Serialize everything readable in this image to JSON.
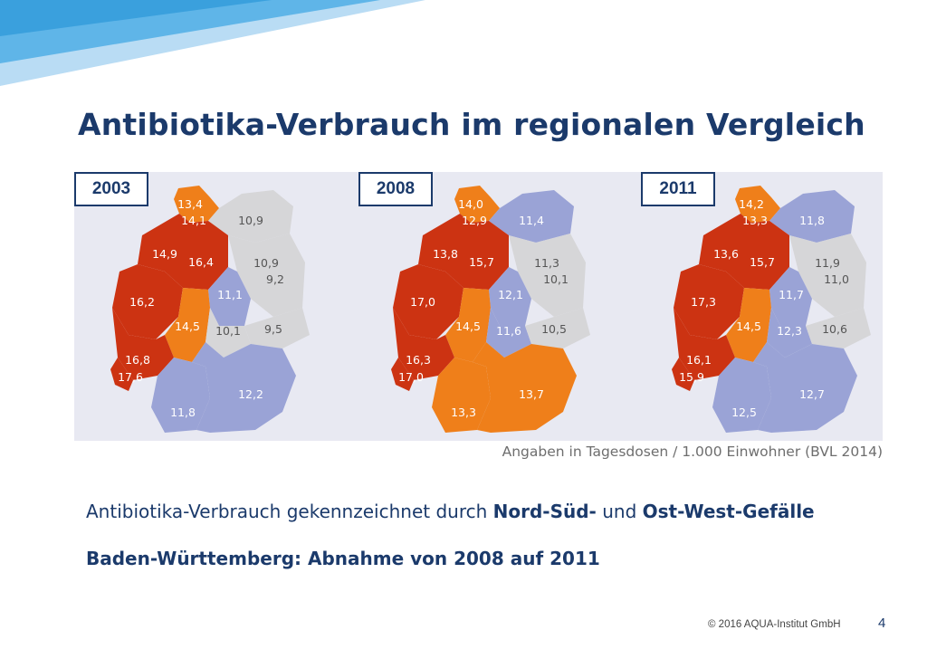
{
  "slide": {
    "title": "Antibiotika-Verbrauch im regionalen Vergleich",
    "source_note": "Angaben in Tagesdosen / 1.000 Einwohner (BVL 2014)",
    "statement_part1": "Antibiotika-Verbrauch gekennzeichnet durch ",
    "statement_bold1": "Nord-Süd-",
    "statement_part2": " und ",
    "statement_bold2": "Ost-West-Gefälle",
    "statement2": "Baden-Württemberg: Abnahme von 2008 auf 2011",
    "copyright": "© 2016 AQUA-Institut GmbH",
    "page_number": "4"
  },
  "colors": {
    "high": "#cc3312",
    "medium": "#ef7f1a",
    "low": "#9aa3d6",
    "lowest": "#d6d6d8",
    "title": "#1b3a6b",
    "panel": "#e8e9f2"
  },
  "maps": [
    {
      "year": "2003",
      "regions": {
        "sh": "13,4",
        "hh": "14,1",
        "ni": "14,9",
        "hb": "16,4",
        "mv": "10,9",
        "bb": "10,9",
        "be": "9,2",
        "st": "11,1",
        "nw": "16,2",
        "he": "14,5",
        "th": "10,1",
        "sn": "9,5",
        "rp": "16,8",
        "sl": "17,6",
        "bw": "11,8",
        "by": "12,2"
      }
    },
    {
      "year": "2008",
      "regions": {
        "sh": "14,0",
        "hh": "12,9",
        "ni": "13,8",
        "hb": "15,7",
        "mv": "11,4",
        "bb": "11,3",
        "be": "10,1",
        "st": "12,1",
        "nw": "17,0",
        "he": "14,5",
        "th": "11,6",
        "sn": "10,5",
        "rp": "16,3",
        "sl": "17,0",
        "bw": "13,3",
        "by": "13,7"
      }
    },
    {
      "year": "2011",
      "regions": {
        "sh": "14,2",
        "hh": "13,3",
        "ni": "13,6",
        "hb": "15,7",
        "mv": "11,8",
        "bb": "11,9",
        "be": "11,0",
        "st": "11,7",
        "nw": "17,3",
        "he": "14,5",
        "th": "12,3",
        "sn": "10,6",
        "rp": "16,1",
        "sl": "15,9",
        "bw": "12,5",
        "by": "12,7"
      }
    }
  ]
}
